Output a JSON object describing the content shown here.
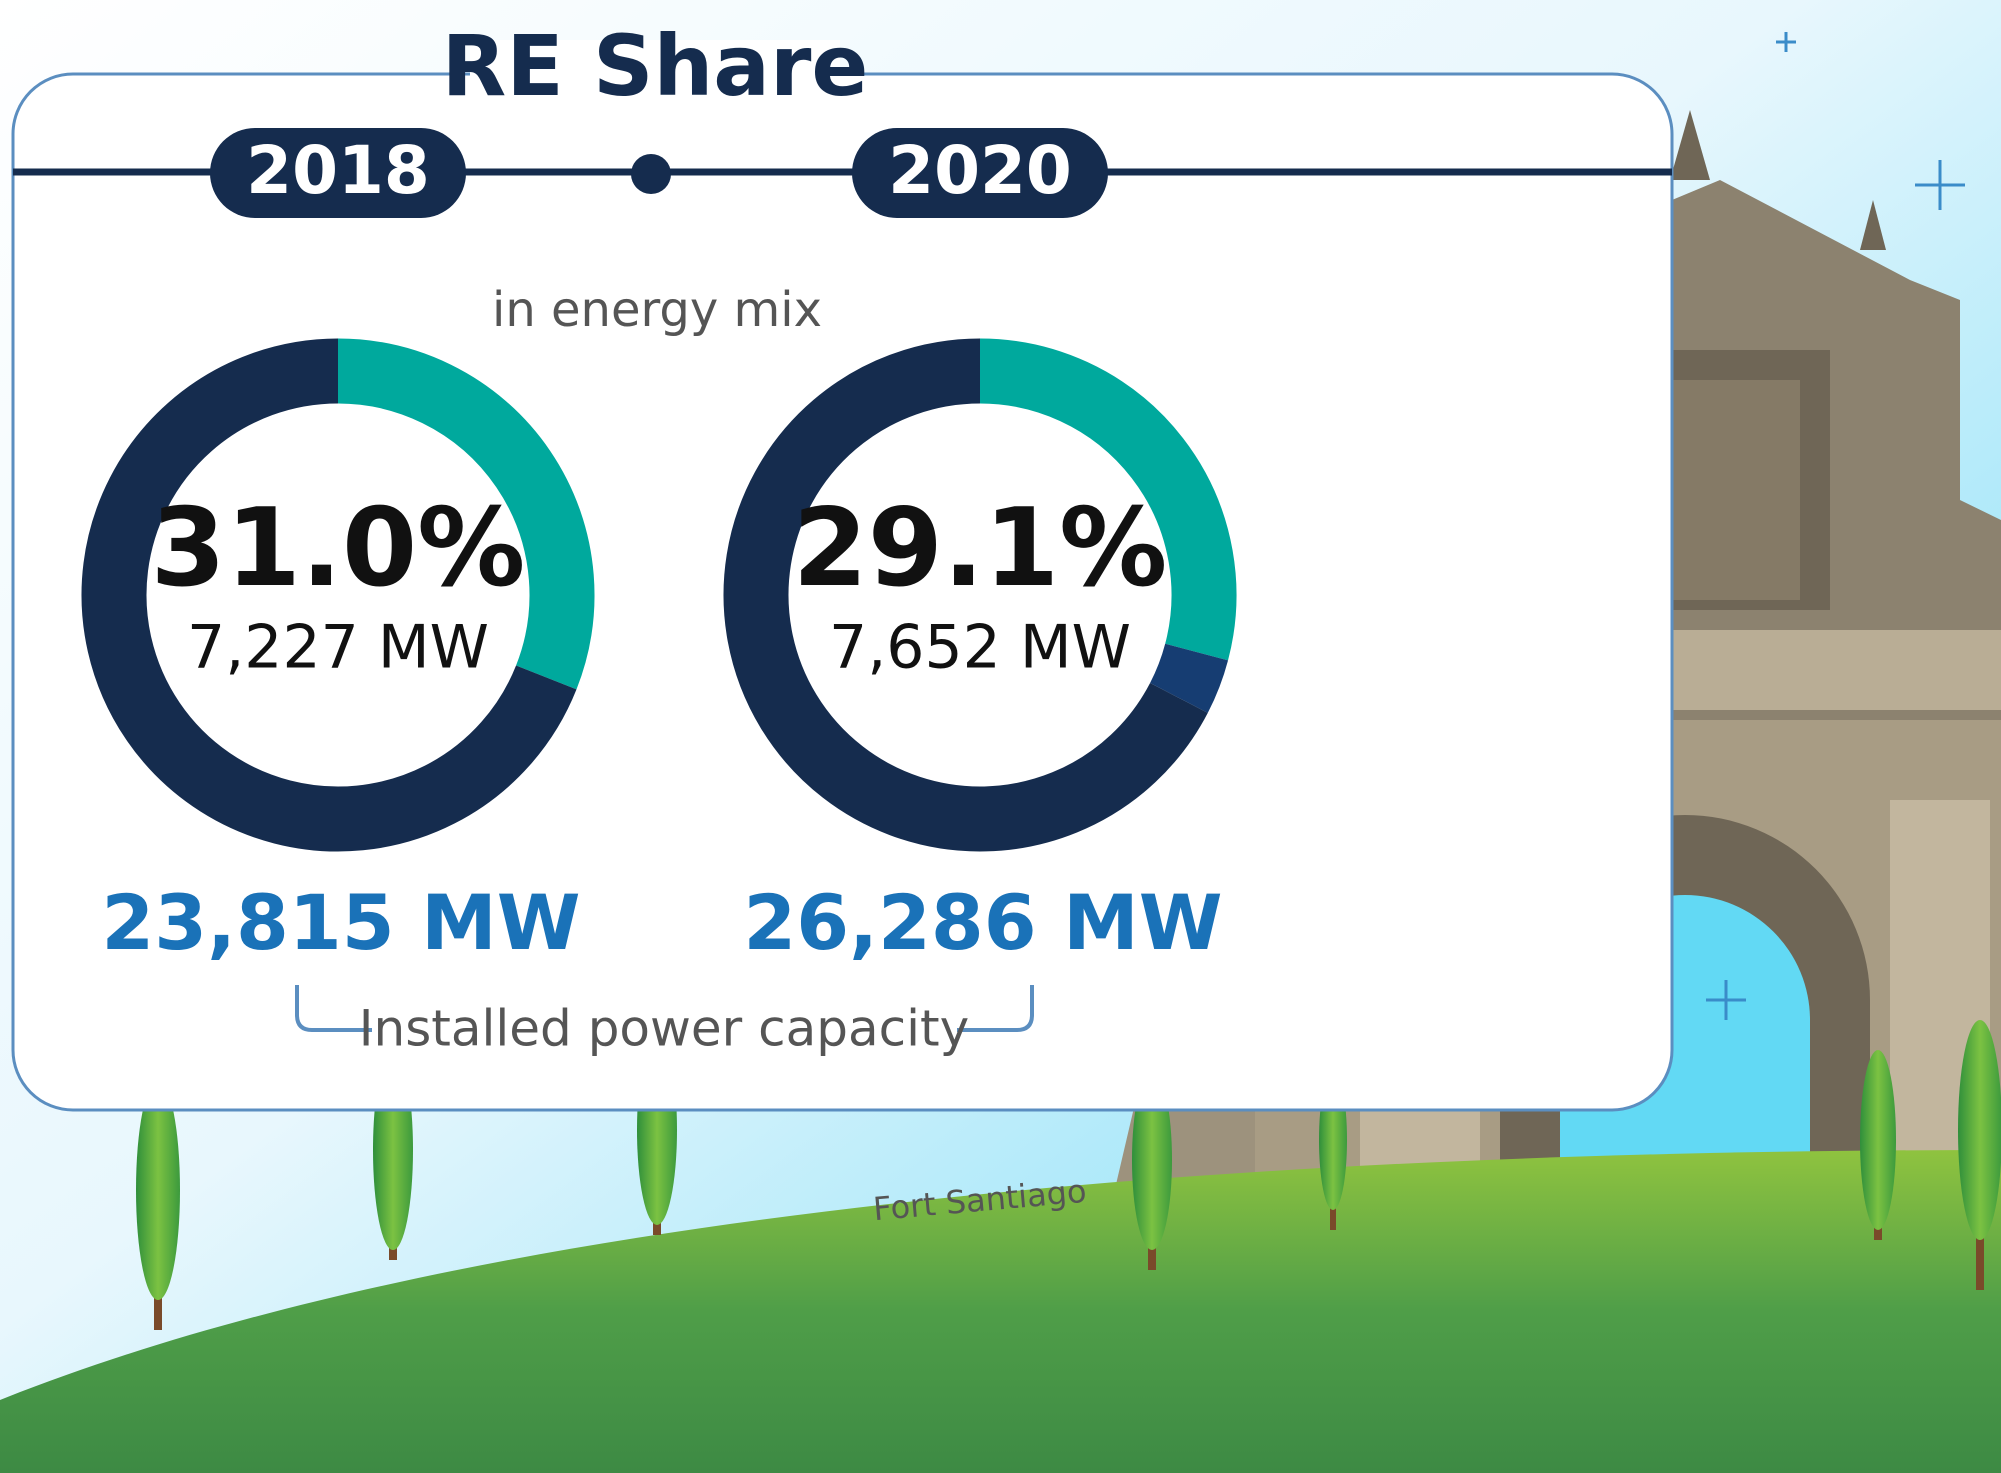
{
  "header": {
    "title": "RE Share",
    "subtitle": "in energy mix",
    "footer_label": "Installed power capacity",
    "caption": "Fort Santiago"
  },
  "chart_data": [
    {
      "type": "donut",
      "title": "2018",
      "values": [
        31.0,
        69.0
      ],
      "value_labels": [
        "31.0%",
        null
      ],
      "colors": [
        "#00a99d",
        "#152c4e"
      ],
      "re_capacity": "7,227 MW",
      "installed_capacity": "23,815 MW"
    },
    {
      "type": "donut",
      "title": "2020",
      "values": [
        29.1,
        3.5,
        67.4
      ],
      "value_labels": [
        "29.1%",
        null,
        null
      ],
      "colors": [
        "#00a99d",
        "#163d72",
        "#152c4e"
      ],
      "re_capacity": "7,652 MW",
      "installed_capacity": "26,286 MW"
    }
  ]
}
